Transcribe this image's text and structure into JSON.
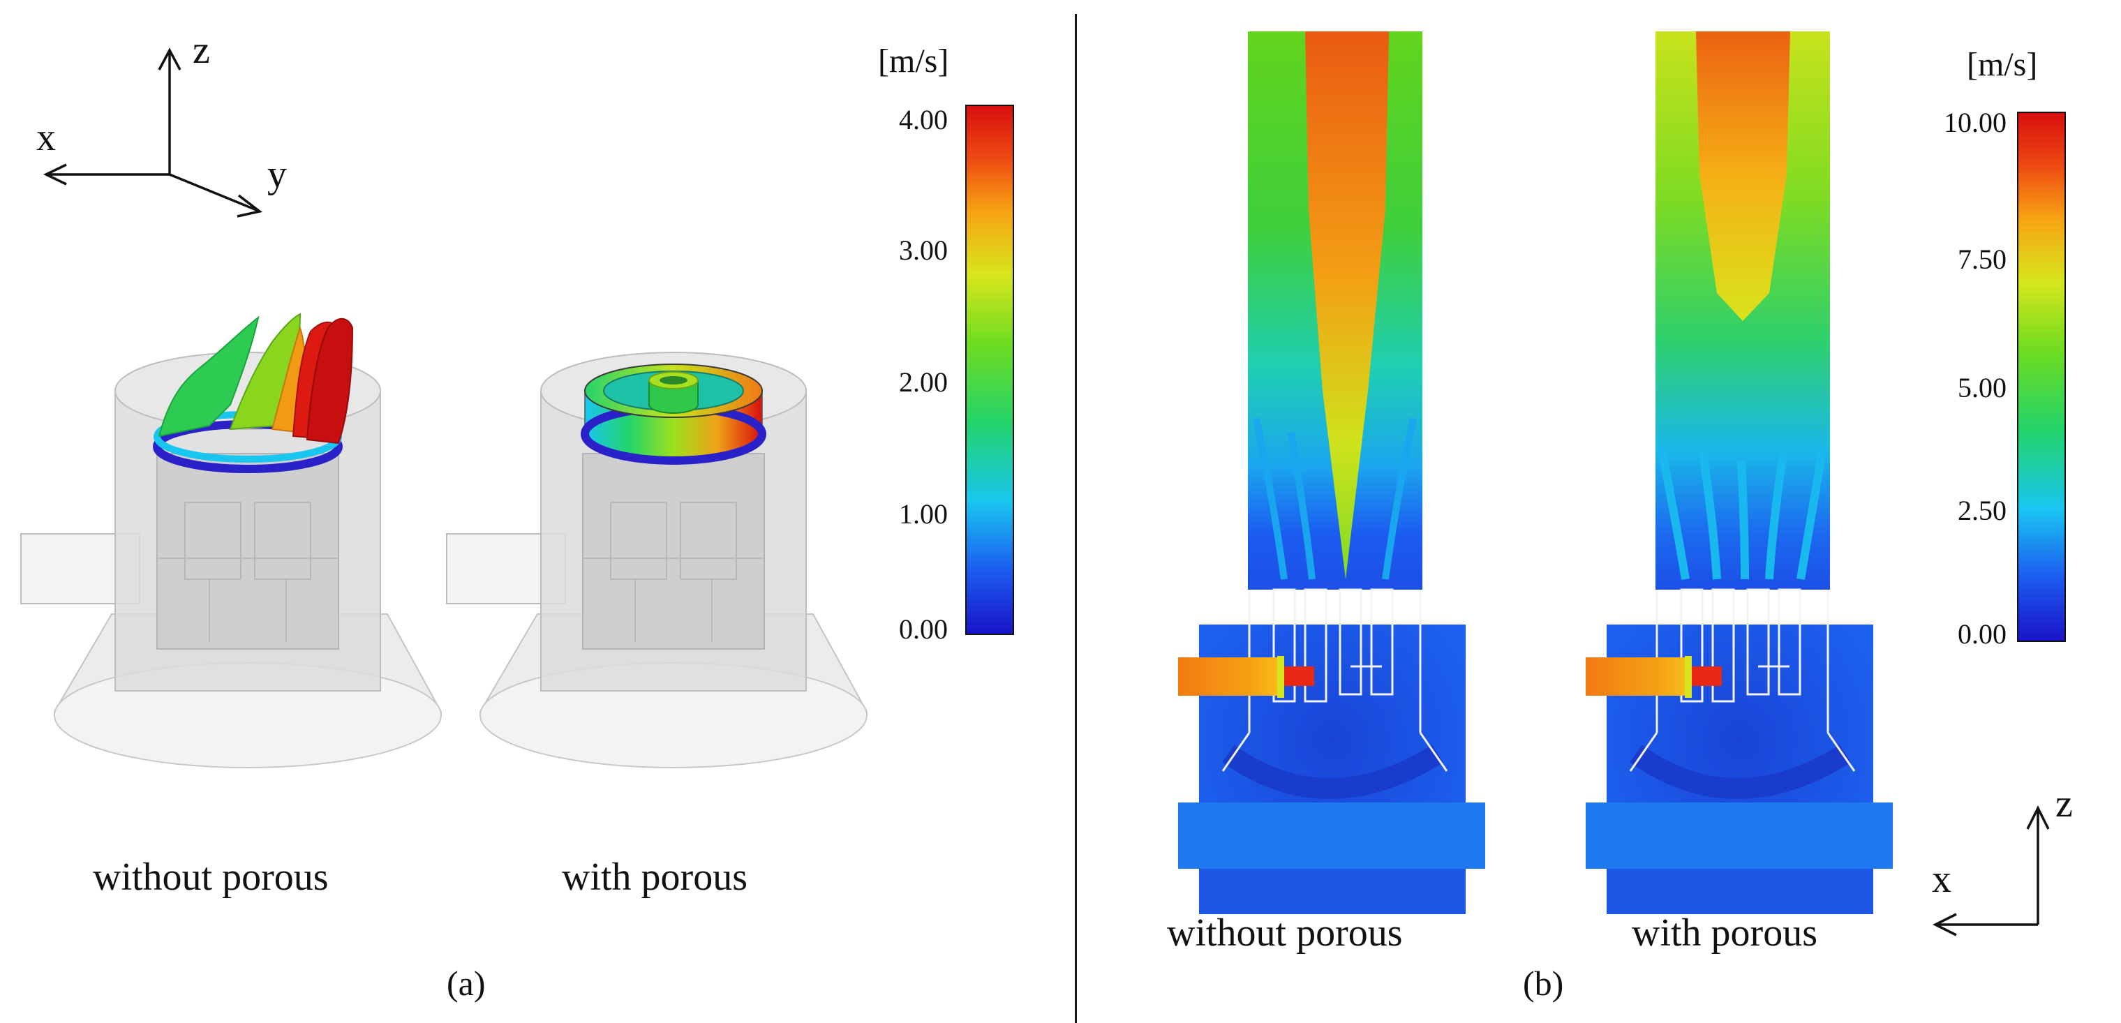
{
  "panel_a": {
    "label": "(a)",
    "axes": {
      "z": "z",
      "x": "x",
      "y": "y"
    },
    "colorbar": {
      "unit": "[m/s]",
      "ticks": [
        "4.00",
        "3.00",
        "2.00",
        "1.00",
        "0.00"
      ]
    },
    "left_caption": "without porous",
    "right_caption": "with porous"
  },
  "panel_b": {
    "label": "(b)",
    "axes": {
      "z": "z",
      "x": "x"
    },
    "colorbar": {
      "unit": "[m/s]",
      "ticks": [
        "10.00",
        "7.50",
        "5.00",
        "2.50",
        "0.00"
      ]
    },
    "left_caption": "without porous",
    "right_caption": "with porous"
  },
  "colors": {
    "low": "#1a14c8",
    "mid": "#23d46a",
    "high": "#d80f0f",
    "field_blue": "#1c4fe6",
    "housing": "#d9d9d9"
  }
}
